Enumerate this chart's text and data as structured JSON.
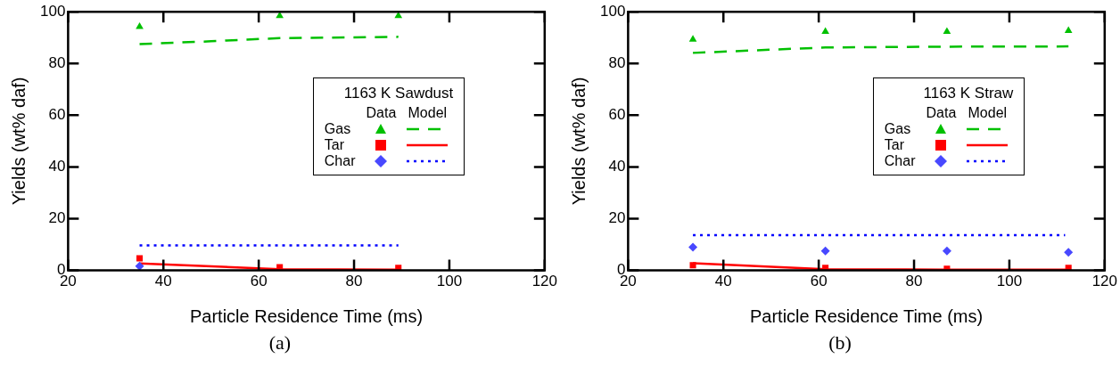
{
  "chart_data": [
    {
      "type": "scatter",
      "xlabel": "Particle Residence Time (ms)",
      "ylabel": "Yields (wt% daf)",
      "legend_title": "1163 K Sawdust",
      "annotations": [
        "Data",
        "Model",
        "(a)"
      ],
      "xlim": [
        20,
        120
      ],
      "xticks": [
        20,
        40,
        60,
        80,
        100,
        120
      ],
      "ylim": [
        0,
        100
      ],
      "yticks": [
        0,
        20,
        40,
        60,
        80,
        100
      ],
      "grid": false,
      "legend": "right",
      "series": [
        {
          "name": "Gas",
          "marker": "triangle",
          "color": "#00c000",
          "x": [
            35,
            64.4,
            89.3
          ],
          "values": [
            94.2,
            98.4,
            98.4
          ]
        },
        {
          "name": "Tar",
          "marker": "square",
          "color": "#ff0000",
          "x": [
            35,
            64.4,
            89.3
          ],
          "values": [
            4.7,
            1.2,
            1.0
          ]
        },
        {
          "name": "Char",
          "marker": "diamond",
          "color": "#4848ff",
          "x": [
            35
          ],
          "values": [
            1.7
          ]
        },
        {
          "type": "line",
          "line_style": "dashed",
          "color": "#00c000",
          "x": [
            35,
            50,
            64.4,
            89.3
          ],
          "values": [
            87.5,
            88.6,
            89.8,
            90.3
          ]
        },
        {
          "type": "line",
          "line_style": "solid",
          "color": "#ff0000",
          "x": [
            35,
            64.4,
            89.3
          ],
          "values": [
            2.7,
            0.5,
            0.3
          ]
        },
        {
          "type": "line",
          "line_style": "dotted",
          "color": "#0000ff",
          "x": [
            35,
            89.3
          ],
          "values": [
            9.7,
            9.7
          ]
        }
      ]
    },
    {
      "type": "scatter",
      "xlabel": "Particle Residence Time (ms)",
      "ylabel": "Yields (wt% daf)",
      "legend_title": "1163 K Straw",
      "annotations": [
        "Data",
        "Model",
        "(b)"
      ],
      "xlim": [
        20,
        120
      ],
      "xticks": [
        20,
        40,
        60,
        80,
        100,
        120
      ],
      "ylim": [
        0,
        100
      ],
      "yticks": [
        0,
        20,
        40,
        60,
        80,
        100
      ],
      "grid": false,
      "legend": "right",
      "series": [
        {
          "name": "Gas",
          "marker": "triangle",
          "color": "#00c000",
          "x": [
            33.6,
            61.4,
            86.9,
            112.4
          ],
          "values": [
            89.3,
            92.3,
            92.3,
            92.7
          ]
        },
        {
          "name": "Tar",
          "marker": "square",
          "color": "#ff0000",
          "x": [
            33.6,
            61.4,
            86.9,
            112.4
          ],
          "values": [
            2.0,
            1.0,
            0.6,
            1.0
          ]
        },
        {
          "name": "Char",
          "marker": "diamond",
          "color": "#4848ff",
          "x": [
            33.6,
            61.4,
            86.9,
            112.4
          ],
          "values": [
            9.0,
            7.5,
            7.5,
            7.0
          ]
        },
        {
          "type": "line",
          "line_style": "dashed",
          "color": "#00c000",
          "x": [
            33.6,
            61.4,
            86.9,
            112.4
          ],
          "values": [
            84.1,
            86.2,
            86.5,
            86.6
          ]
        },
        {
          "type": "line",
          "line_style": "solid",
          "color": "#ff0000",
          "x": [
            33.6,
            61.4,
            86.9,
            112.4
          ],
          "values": [
            2.8,
            0.5,
            0.3,
            0.3
          ]
        },
        {
          "type": "line",
          "line_style": "dotted",
          "color": "#0000ff",
          "x": [
            33.6,
            111.7
          ],
          "values": [
            13.6,
            13.6
          ]
        }
      ]
    }
  ]
}
